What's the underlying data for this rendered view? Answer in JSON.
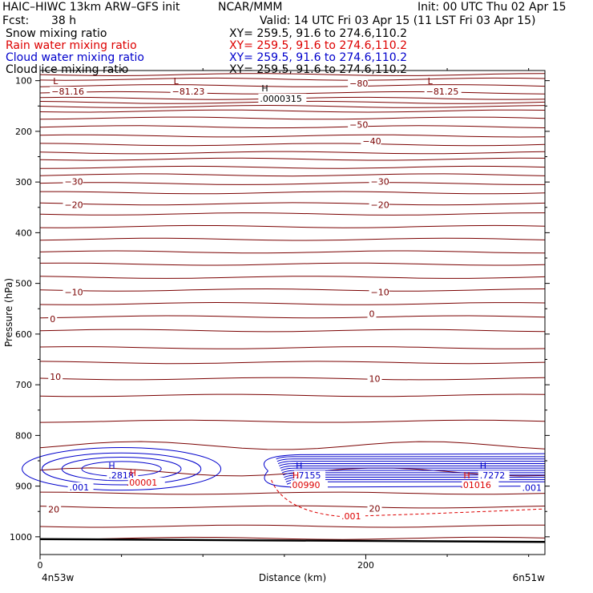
{
  "header": {
    "model": "HAIC–HIWC 13km ARW–GFS init",
    "org": "NCAR/MMM",
    "init": "Init: 00 UTC Thu 02 Apr 15",
    "fcst_label": "Fcst:",
    "fcst_value": "38 h",
    "valid": "Valid: 14 UTC Fri 03 Apr 15 (11 LST Fri 03 Apr 15)"
  },
  "fields": [
    {
      "name": "Snow mixing ratio",
      "xy": "XY= 259.5, 91.6 to 274.6,110.2",
      "color": "#000000"
    },
    {
      "name": "Rain water mixing ratio",
      "xy": "XY= 259.5, 91.6 to 274.6,110.2",
      "color": "#dd0000"
    },
    {
      "name": "Cloud water mixing ratio",
      "xy": "XY= 259.5, 91.6 to 274.6,110.2",
      "color": "#0000cc"
    },
    {
      "name": "Cloud ice mixing ratio",
      "xy": "XY= 259.5, 91.6 to 274.6,110.2",
      "color": "#000000"
    }
  ],
  "chart_data": {
    "type": "line",
    "title": "",
    "xlabel": "Distance (km)",
    "ylabel": "Pressure (hPa)",
    "xlim": [
      0,
      310
    ],
    "ylim": [
      1035,
      80
    ],
    "y_ticks": [
      100,
      200,
      300,
      400,
      500,
      600,
      700,
      800,
      900,
      1000
    ],
    "x_ticks": [
      0,
      200
    ],
    "x_tick_labels": [
      "0",
      "200"
    ],
    "endpoint_labels": [
      "4n53w",
      "6n51w"
    ],
    "grid": false,
    "colors": {
      "temperature": "#7a0000",
      "cloud_water": "#0000cc",
      "rain": "#dd0000",
      "ground": "#000000"
    },
    "temperature_levels": [
      {
        "p": 88
      },
      {
        "p": 97
      },
      {
        "p": 110
      },
      {
        "p": 124
      },
      {
        "p": 135
      },
      {
        "p": 143
      },
      {
        "p": 151
      },
      {
        "p": 160
      },
      {
        "p": 174
      },
      {
        "p": 191
      },
      {
        "p": 209
      },
      {
        "p": 226
      },
      {
        "p": 242
      },
      {
        "p": 255
      },
      {
        "p": 271
      },
      {
        "p": 286
      },
      {
        "p": 303
      },
      {
        "p": 321
      },
      {
        "p": 343
      },
      {
        "p": 363
      },
      {
        "p": 388
      },
      {
        "p": 413
      },
      {
        "p": 438
      },
      {
        "p": 462
      },
      {
        "p": 488
      },
      {
        "p": 513
      },
      {
        "p": 540
      },
      {
        "p": 566
      },
      {
        "p": 593
      },
      {
        "p": 627
      },
      {
        "p": 656
      },
      {
        "p": 688
      },
      {
        "p": 721
      },
      {
        "p": 772
      },
      {
        "p": 820
      },
      {
        "p": 872
      },
      {
        "p": 914
      },
      {
        "p": 941
      },
      {
        "p": 979
      },
      {
        "p": 1003
      }
    ],
    "temperature_labels": [
      {
        "text": "−80",
        "x": 190,
        "p": 105
      },
      {
        "text": "−50",
        "x": 190,
        "p": 187
      },
      {
        "text": "−40",
        "x": 198,
        "p": 219
      },
      {
        "text": "−30",
        "x": 15,
        "p": 299
      },
      {
        "text": "−30",
        "x": 203,
        "p": 299
      },
      {
        "text": "−20",
        "x": 15,
        "p": 345
      },
      {
        "text": "−20",
        "x": 203,
        "p": 345
      },
      {
        "text": "−10",
        "x": 15,
        "p": 517
      },
      {
        "text": "−10",
        "x": 203,
        "p": 517
      },
      {
        "text": "0",
        "x": 6,
        "p": 570
      },
      {
        "text": "0",
        "x": 202,
        "p": 560
      },
      {
        "text": "10",
        "x": 6,
        "p": 684
      },
      {
        "text": "10",
        "x": 202,
        "p": 688
      },
      {
        "text": "20",
        "x": 5,
        "p": 946
      },
      {
        "text": "20",
        "x": 202,
        "p": 944
      }
    ],
    "extrema": [
      {
        "kind": "L",
        "x": 8,
        "p": 88,
        "value": "−81.16"
      },
      {
        "kind": "L",
        "x": 82,
        "p": 88,
        "value": "−81.23"
      },
      {
        "kind": "H",
        "x": 136,
        "p": 102,
        "value": ".0000315"
      },
      {
        "kind": "L",
        "x": 238,
        "p": 88,
        "value": "−81.25"
      }
    ],
    "cloud_water": {
      "max_left": {
        "label": "H",
        "value": ".2818",
        "x": 42,
        "p": 866
      },
      "max_right1": {
        "label": "H",
        "value": ".7155",
        "x": 157,
        "p": 866
      },
      "max_right2": {
        "label": "H",
        "value": ".7272",
        "x": 270,
        "p": 866
      },
      "edge_labels": [
        {
          "text": ".001",
          "x": 18,
          "p": 902
        },
        {
          "text": ".001",
          "x": 296,
          "p": 903
        }
      ]
    },
    "rain": {
      "maxima": [
        {
          "label": "H",
          "value": ".00001",
          "x": 55,
          "p": 880
        },
        {
          "label": "H",
          "value": ".00990",
          "x": 155,
          "p": 885
        },
        {
          "label": "H",
          "value": ".01016",
          "x": 260,
          "p": 885
        }
      ],
      "edge_label": {
        "text": ".001",
        "x": 185,
        "p": 959
      }
    }
  }
}
